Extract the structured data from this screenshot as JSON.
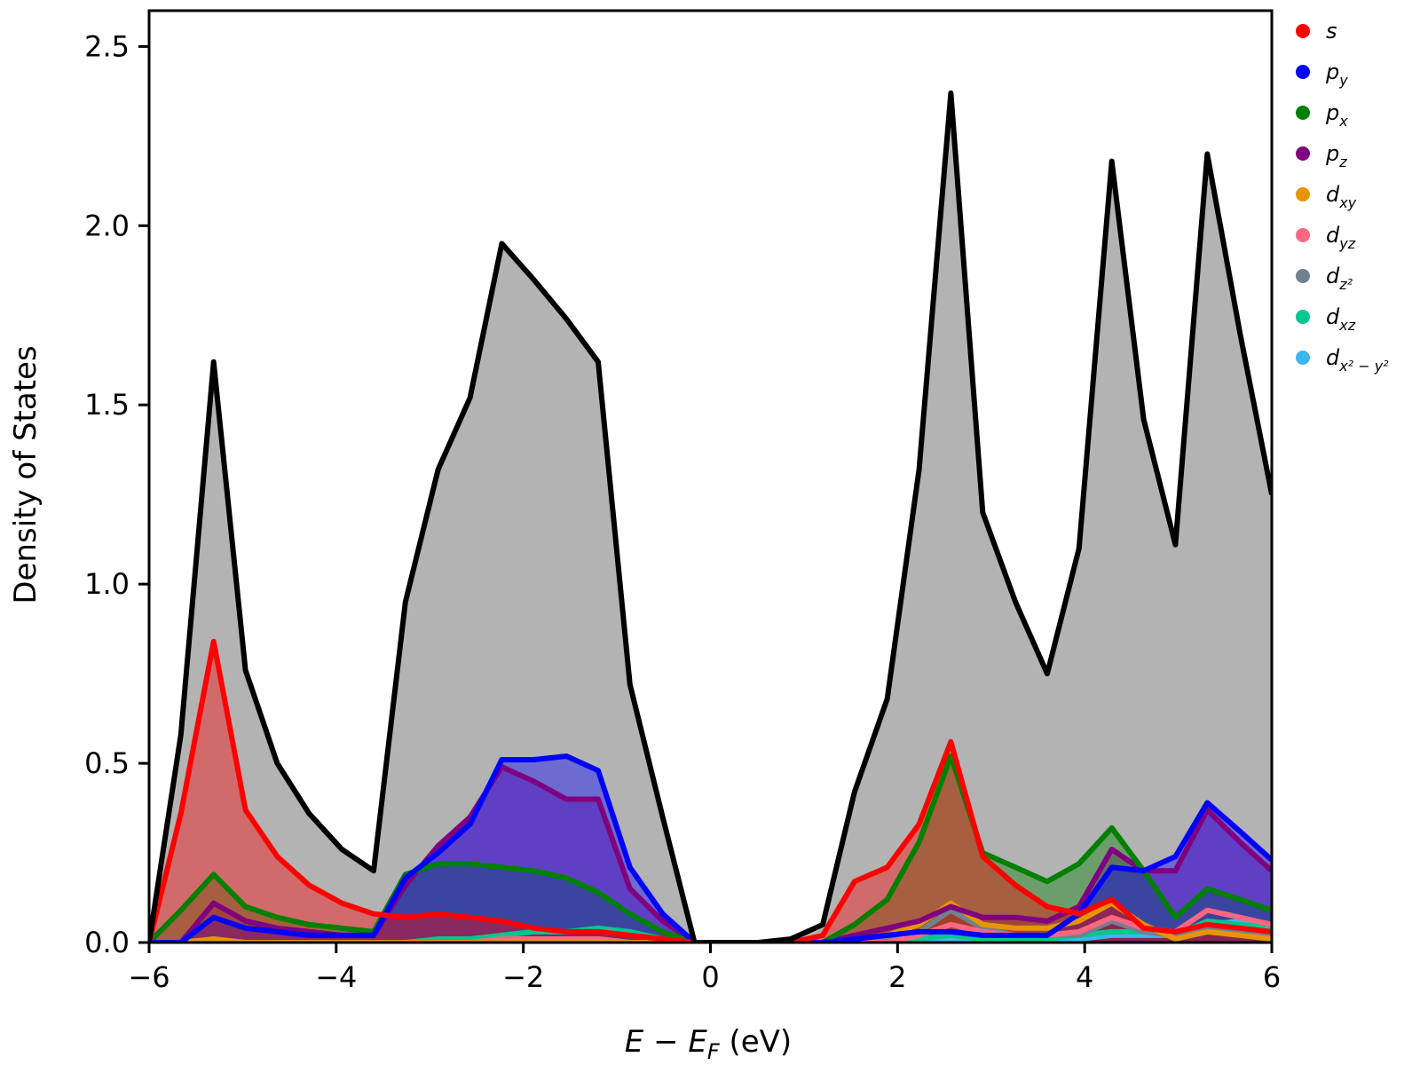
{
  "chart_data": {
    "type": "area",
    "title": "",
    "xlabel": "E − E",
    "xlabel_sub": "F",
    "xlabel_units": " (eV)",
    "ylabel": "Density of States",
    "xlim": [
      -6,
      6
    ],
    "ylim": [
      0,
      2.6
    ],
    "xticks": [
      -6,
      -4,
      -2,
      0,
      2,
      4,
      6
    ],
    "xtick_labels": [
      "−6",
      "−4",
      "−2",
      "0",
      "2",
      "4",
      "6"
    ],
    "yticks": [
      0,
      0.5,
      1.0,
      1.5,
      2.0,
      2.5
    ],
    "ytick_labels": [
      "0.0",
      "0.5",
      "1.0",
      "1.5",
      "2.0",
      "2.5"
    ],
    "grid": false,
    "legend_position": "outside-right-top",
    "x": [
      -6.0,
      -5.66,
      -5.31,
      -4.97,
      -4.63,
      -4.29,
      -3.94,
      -3.6,
      -3.26,
      -2.91,
      -2.57,
      -2.23,
      -1.89,
      -1.54,
      -1.2,
      -0.86,
      -0.51,
      -0.17,
      0.17,
      0.51,
      0.86,
      1.2,
      1.54,
      1.89,
      2.23,
      2.57,
      2.91,
      3.26,
      3.6,
      3.94,
      4.29,
      4.63,
      4.97,
      5.31,
      5.66,
      6.0
    ],
    "total": {
      "name": "total",
      "color": "#000000",
      "fill": "#b3b3b3",
      "values": [
        0.0,
        0.58,
        1.62,
        0.76,
        0.5,
        0.36,
        0.26,
        0.2,
        0.95,
        1.32,
        1.52,
        1.95,
        1.85,
        1.74,
        1.62,
        0.72,
        0.35,
        0.0,
        0.0,
        0.0,
        0.01,
        0.05,
        0.42,
        0.68,
        1.32,
        2.37,
        1.2,
        0.95,
        0.75,
        1.1,
        2.18,
        1.46,
        1.11,
        2.2,
        1.7,
        1.25
      ]
    },
    "series": [
      {
        "name": "s",
        "label": "s",
        "sub": "",
        "color": "#ff0000",
        "values": [
          0.0,
          0.36,
          0.84,
          0.37,
          0.24,
          0.16,
          0.11,
          0.08,
          0.07,
          0.08,
          0.07,
          0.06,
          0.04,
          0.03,
          0.03,
          0.02,
          0.01,
          0.0,
          0.0,
          0.0,
          0.0,
          0.02,
          0.17,
          0.21,
          0.33,
          0.56,
          0.24,
          0.16,
          0.1,
          0.08,
          0.12,
          0.04,
          0.03,
          0.05,
          0.04,
          0.03
        ]
      },
      {
        "name": "py",
        "label": "p",
        "sub": "y",
        "color": "#0000ff",
        "values": [
          0.0,
          0.0,
          0.07,
          0.04,
          0.03,
          0.02,
          0.02,
          0.02,
          0.18,
          0.25,
          0.33,
          0.51,
          0.51,
          0.52,
          0.48,
          0.21,
          0.08,
          0.0,
          0.0,
          0.0,
          0.0,
          0.0,
          0.01,
          0.02,
          0.03,
          0.03,
          0.02,
          0.02,
          0.02,
          0.08,
          0.21,
          0.2,
          0.24,
          0.39,
          0.31,
          0.23
        ]
      },
      {
        "name": "px",
        "label": "p",
        "sub": "x",
        "color": "#008000",
        "values": [
          0.0,
          0.09,
          0.19,
          0.1,
          0.07,
          0.05,
          0.04,
          0.03,
          0.19,
          0.22,
          0.22,
          0.21,
          0.2,
          0.18,
          0.14,
          0.08,
          0.03,
          0.0,
          0.0,
          0.0,
          0.0,
          0.0,
          0.05,
          0.12,
          0.28,
          0.52,
          0.25,
          0.21,
          0.17,
          0.22,
          0.32,
          0.2,
          0.07,
          0.15,
          0.12,
          0.09
        ]
      },
      {
        "name": "pz",
        "label": "p",
        "sub": "z",
        "color": "#800080",
        "values": [
          0.0,
          0.0,
          0.11,
          0.06,
          0.04,
          0.03,
          0.02,
          0.02,
          0.16,
          0.27,
          0.35,
          0.49,
          0.45,
          0.4,
          0.4,
          0.15,
          0.06,
          0.0,
          0.0,
          0.0,
          0.0,
          0.0,
          0.02,
          0.04,
          0.06,
          0.1,
          0.07,
          0.07,
          0.06,
          0.1,
          0.26,
          0.2,
          0.2,
          0.37,
          0.28,
          0.2
        ]
      },
      {
        "name": "dxy",
        "label": "d",
        "sub": "xy",
        "color": "#e69500",
        "values": [
          0.0,
          0.0,
          0.01,
          0.0,
          0.0,
          0.0,
          0.0,
          0.0,
          0.0,
          0.0,
          0.0,
          0.0,
          0.0,
          0.0,
          0.0,
          0.0,
          0.0,
          0.0,
          0.0,
          0.0,
          0.0,
          0.0,
          0.01,
          0.02,
          0.05,
          0.11,
          0.05,
          0.04,
          0.04,
          0.06,
          0.11,
          0.05,
          0.01,
          0.03,
          0.02,
          0.01
        ]
      },
      {
        "name": "dyz",
        "label": "d",
        "sub": "yz",
        "color": "#ff6680",
        "values": [
          0.0,
          0.0,
          0.0,
          0.0,
          0.0,
          0.0,
          0.0,
          0.0,
          0.0,
          0.0,
          0.0,
          0.01,
          0.01,
          0.01,
          0.01,
          0.0,
          0.0,
          0.0,
          0.0,
          0.0,
          0.0,
          0.0,
          0.0,
          0.0,
          0.02,
          0.05,
          0.03,
          0.02,
          0.02,
          0.03,
          0.07,
          0.04,
          0.03,
          0.09,
          0.07,
          0.05
        ]
      },
      {
        "name": "dz2",
        "label": "d",
        "sub": "z²",
        "color": "#708090",
        "values": [
          0.0,
          0.0,
          0.0,
          0.0,
          0.0,
          0.0,
          0.0,
          0.0,
          0.0,
          0.0,
          0.0,
          0.0,
          0.0,
          0.0,
          0.0,
          0.0,
          0.0,
          0.0,
          0.0,
          0.0,
          0.0,
          0.0,
          0.0,
          0.01,
          0.03,
          0.09,
          0.04,
          0.02,
          0.02,
          0.02,
          0.06,
          0.03,
          0.02,
          0.04,
          0.03,
          0.02
        ]
      },
      {
        "name": "dxz",
        "label": "d",
        "sub": "xz",
        "color": "#00c78c",
        "values": [
          0.0,
          0.0,
          0.0,
          0.0,
          0.0,
          0.0,
          0.0,
          0.0,
          0.0,
          0.01,
          0.01,
          0.02,
          0.03,
          0.03,
          0.04,
          0.03,
          0.01,
          0.0,
          0.0,
          0.0,
          0.0,
          0.0,
          0.0,
          0.0,
          0.01,
          0.02,
          0.01,
          0.01,
          0.01,
          0.02,
          0.03,
          0.03,
          0.02,
          0.06,
          0.05,
          0.04
        ]
      },
      {
        "name": "dx2-y2",
        "label": "d",
        "sub": "x² − y²",
        "color": "#3ab7f0",
        "values": [
          0.0,
          0.0,
          0.0,
          0.0,
          0.0,
          0.0,
          0.0,
          0.0,
          0.0,
          0.0,
          0.0,
          0.0,
          0.0,
          0.01,
          0.01,
          0.0,
          0.0,
          0.0,
          0.0,
          0.0,
          0.0,
          0.0,
          0.0,
          0.0,
          0.0,
          0.01,
          0.01,
          0.01,
          0.01,
          0.01,
          0.02,
          0.02,
          0.02,
          0.05,
          0.06,
          0.05
        ]
      }
    ]
  }
}
